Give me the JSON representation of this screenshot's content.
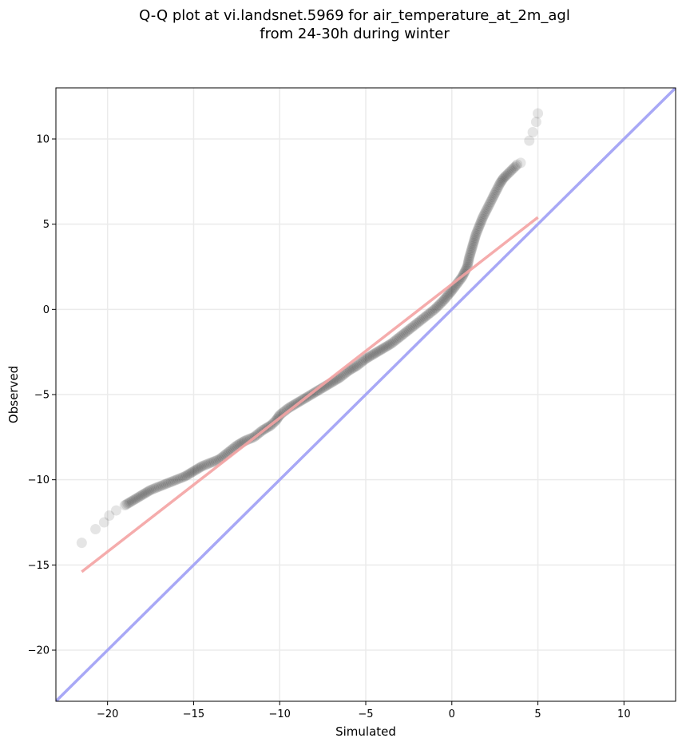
{
  "chart_data": {
    "type": "scatter",
    "title": "Q-Q plot at vi.landsnet.5969 for air_temperature_at_2m_agl\nfrom 24-30h during winter",
    "xlabel": "Simulated",
    "ylabel": "Observed",
    "xlim": [
      -23,
      13
    ],
    "ylim": [
      -23,
      13
    ],
    "xticks": [
      -20,
      -15,
      -10,
      -5,
      0,
      5,
      10
    ],
    "yticks": [
      -20,
      -15,
      -10,
      -5,
      0,
      5,
      10
    ],
    "xtick_labels": [
      "−20",
      "−15",
      "−10",
      "−5",
      "0",
      "5",
      "10"
    ],
    "ytick_labels": [
      "−20",
      "−15",
      "−10",
      "−5",
      "0",
      "5",
      "10"
    ],
    "grid": true,
    "colors": {
      "points": "#000000",
      "fit_line": "#f4a3a3",
      "identity_line": "#a8a8f6",
      "grid": "#ebebeb"
    },
    "quantile_curve": {
      "name": "",
      "x": [
        -21.5,
        -20.7,
        -20.2,
        -19.9,
        -19.5,
        -19.0,
        -18.5,
        -18.0,
        -17.5,
        -17.0,
        -16.5,
        -16.0,
        -15.5,
        -15.0,
        -14.5,
        -14.0,
        -13.5,
        -13.0,
        -12.5,
        -12.0,
        -11.5,
        -11.0,
        -10.5,
        -10.2,
        -10.0,
        -9.5,
        -9.0,
        -8.5,
        -8.0,
        -7.5,
        -7.0,
        -6.5,
        -6.0,
        -5.5,
        -5.0,
        -4.5,
        -4.0,
        -3.5,
        -3.0,
        -2.5,
        -2.0,
        -1.5,
        -1.0,
        -0.5,
        0.0,
        0.3,
        0.6,
        0.9,
        1.0,
        1.2,
        1.4,
        1.6,
        1.8,
        2.0,
        2.2,
        2.4,
        2.6,
        2.8,
        3.0,
        3.2,
        3.5,
        3.8,
        4.0,
        4.5,
        4.7,
        4.9,
        5.0
      ],
      "y": [
        -13.7,
        -12.9,
        -12.5,
        -12.1,
        -11.8,
        -11.5,
        -11.2,
        -10.9,
        -10.6,
        -10.4,
        -10.2,
        -10.0,
        -9.8,
        -9.5,
        -9.2,
        -9.0,
        -8.8,
        -8.4,
        -8.0,
        -7.7,
        -7.5,
        -7.1,
        -6.8,
        -6.5,
        -6.2,
        -5.8,
        -5.5,
        -5.2,
        -4.9,
        -4.6,
        -4.3,
        -4.0,
        -3.6,
        -3.3,
        -2.9,
        -2.6,
        -2.3,
        -2.0,
        -1.6,
        -1.2,
        -0.8,
        -0.4,
        0.0,
        0.5,
        1.1,
        1.5,
        1.9,
        2.5,
        3.0,
        3.7,
        4.4,
        4.9,
        5.4,
        5.8,
        6.2,
        6.6,
        7.0,
        7.4,
        7.7,
        7.9,
        8.2,
        8.5,
        8.6,
        9.9,
        10.4,
        11.0,
        11.5
      ]
    },
    "fit_line": {
      "x": [
        -21.5,
        5.0
      ],
      "y": [
        -15.4,
        5.4
      ]
    },
    "identity_line": {
      "x": [
        -23,
        13
      ],
      "y": [
        -23,
        13
      ]
    }
  }
}
